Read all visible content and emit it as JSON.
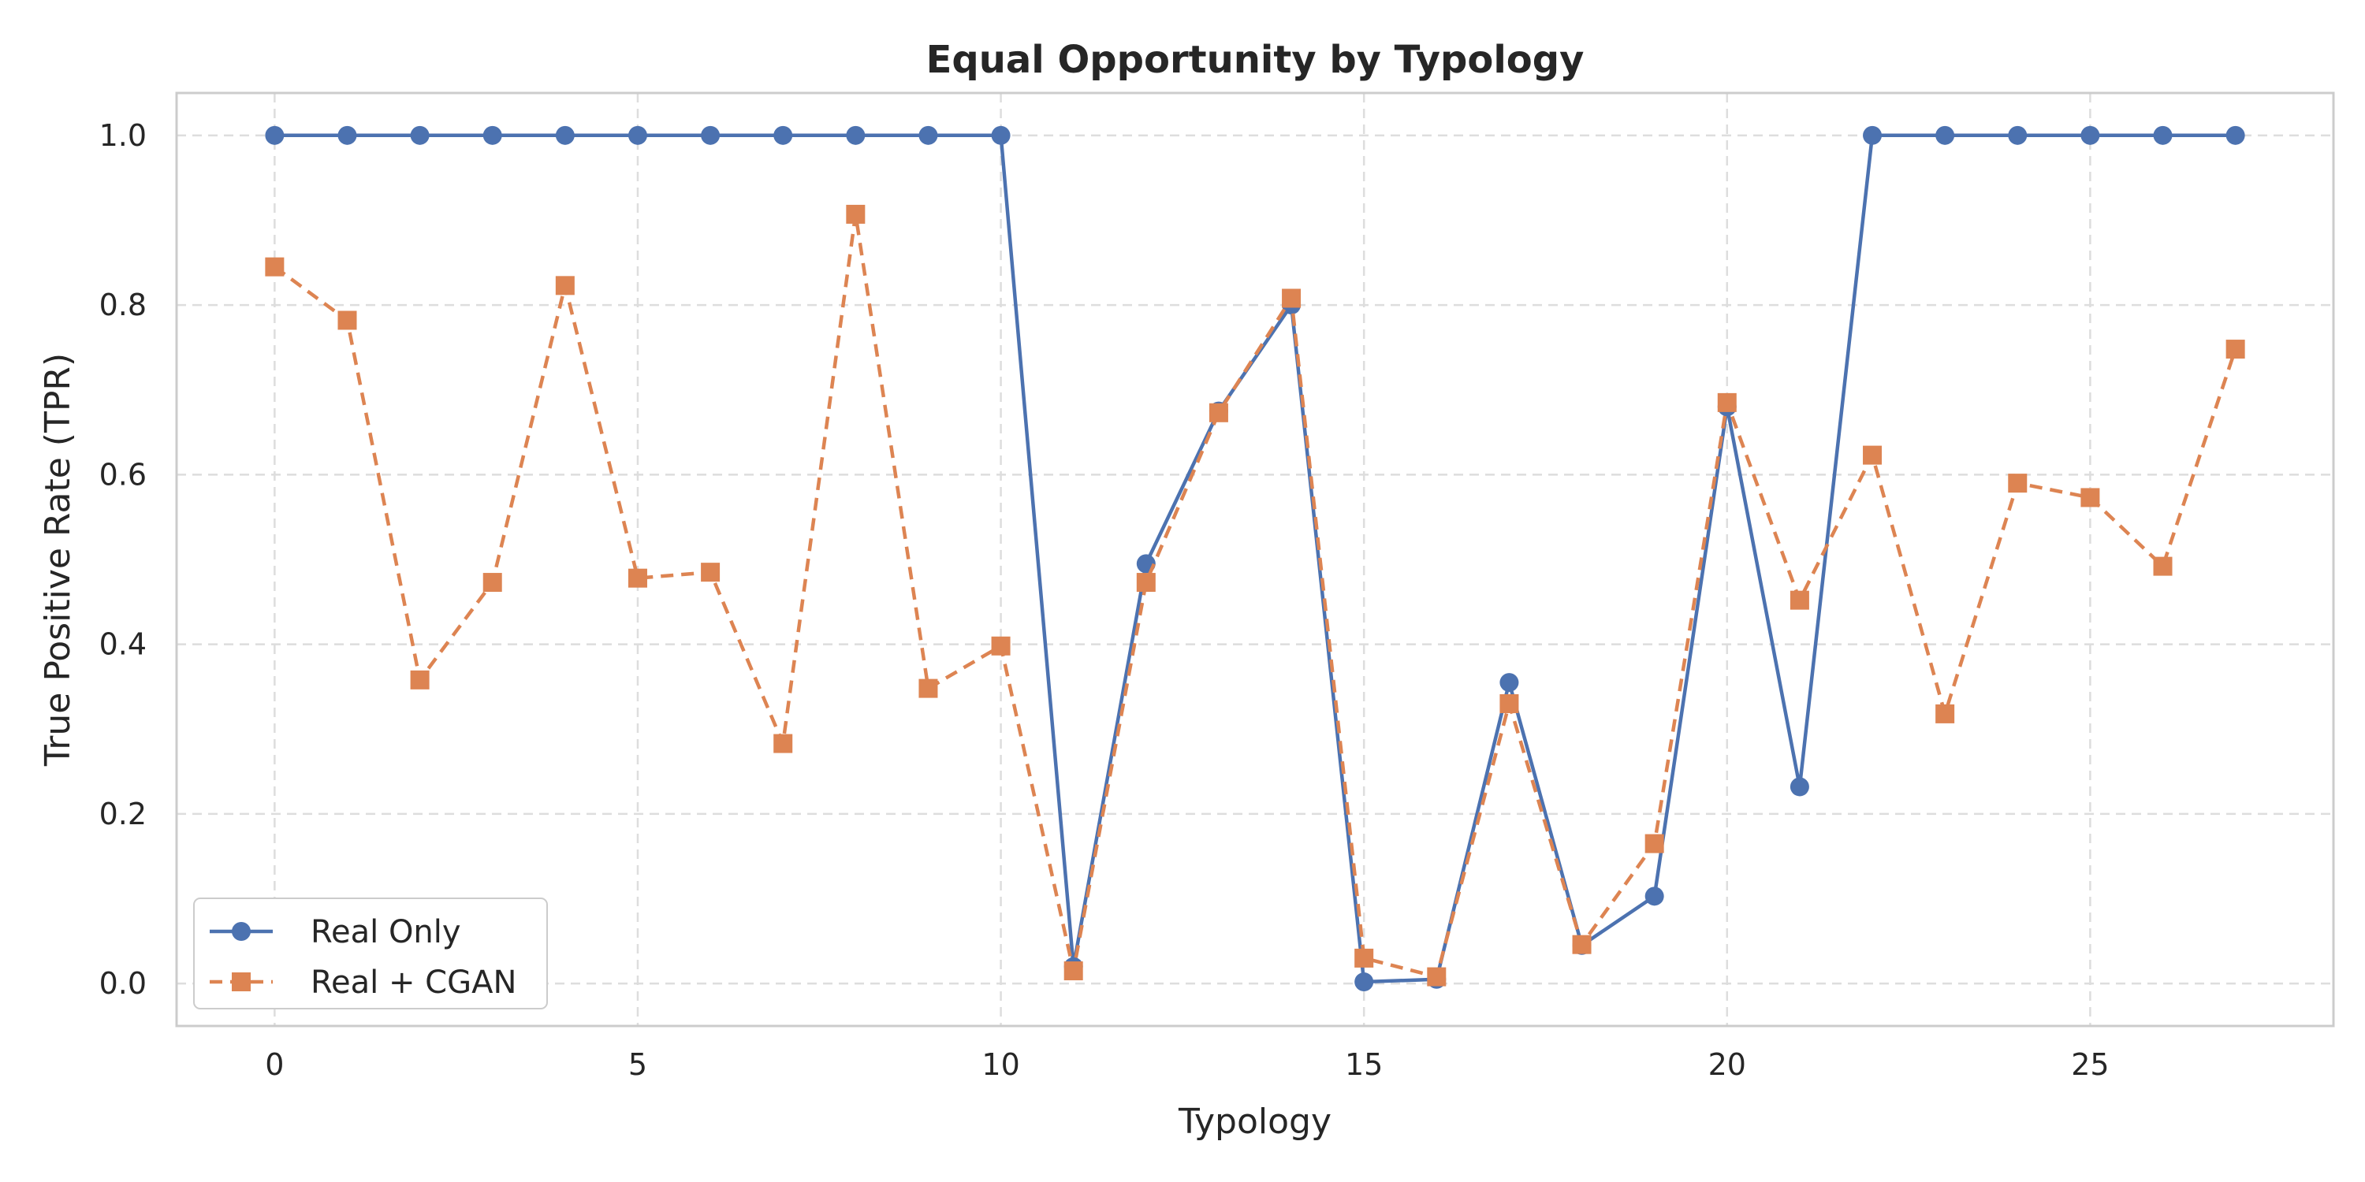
{
  "chart_data": {
    "type": "line",
    "title": "Equal Opportunity by Typology",
    "xlabel": "Typology",
    "ylabel": "True Positive Rate (TPR)",
    "xlim": [
      -1.35,
      28.35
    ],
    "ylim": [
      -0.05,
      1.05
    ],
    "xticks": [
      0,
      5,
      10,
      15,
      20,
      25
    ],
    "yticks": [
      0.0,
      0.2,
      0.4,
      0.6,
      0.8,
      1.0
    ],
    "xtick_labels": [
      "0",
      "5",
      "10",
      "15",
      "20",
      "25"
    ],
    "ytick_labels": [
      "0.0",
      "0.2",
      "0.4",
      "0.6",
      "0.8",
      "1.0"
    ],
    "grid": true,
    "legend_position": "lower-left",
    "x": [
      0,
      1,
      2,
      3,
      4,
      5,
      6,
      7,
      8,
      9,
      10,
      11,
      12,
      13,
      14,
      15,
      16,
      17,
      18,
      19,
      20,
      21,
      22,
      23,
      24,
      25,
      26,
      27
    ],
    "series": [
      {
        "name": "Real Only",
        "color": "#4c72b0",
        "marker": "circle",
        "linestyle": "solid",
        "values": [
          1.0,
          1.0,
          1.0,
          1.0,
          1.0,
          1.0,
          1.0,
          1.0,
          1.0,
          1.0,
          1.0,
          0.02,
          0.495,
          0.675,
          0.8,
          0.002,
          0.005,
          0.355,
          0.045,
          0.103,
          0.68,
          0.232,
          1.0,
          1.0,
          1.0,
          1.0,
          1.0,
          1.0
        ]
      },
      {
        "name": "Real + CGAN",
        "color": "#dd8452",
        "marker": "square",
        "linestyle": "dashed",
        "values": [
          0.845,
          0.782,
          0.358,
          0.473,
          0.823,
          0.478,
          0.485,
          0.283,
          0.907,
          0.348,
          0.398,
          0.015,
          0.473,
          0.673,
          0.808,
          0.03,
          0.008,
          0.33,
          0.046,
          0.165,
          0.685,
          0.452,
          0.623,
          0.318,
          0.59,
          0.573,
          0.492,
          0.748
        ]
      }
    ]
  }
}
